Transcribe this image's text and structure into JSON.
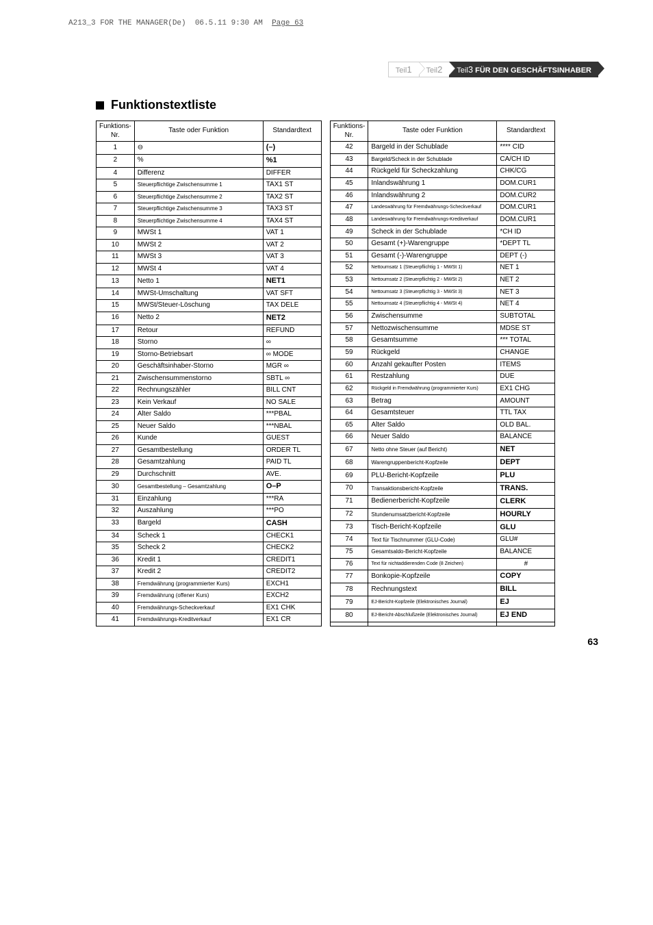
{
  "doc_header": {
    "text": "A213_3 FOR THE MANAGER(De)  06.5.11 9:30 AM  Page 63"
  },
  "tabs": {
    "t1_prefix": "Teil",
    "t1_num": "1",
    "t2_prefix": "Teil",
    "t2_num": "2",
    "t3_prefix": "Teil",
    "t3_num": "3",
    "t3_label": " FÜR DEN GESCHÄFTSINHABER"
  },
  "section_title": "Funktionstextliste",
  "headers": {
    "nr": "Funktions-\nNr.",
    "func": "Taste oder Funktion",
    "std": "Standardtext"
  },
  "rows_left": [
    {
      "nr": "1",
      "func": "⊖",
      "std": "(–)",
      "bold": true
    },
    {
      "nr": "2",
      "func": "%",
      "std": "%1",
      "bold": true
    },
    {
      "nr": "4",
      "func": "Differenz",
      "std": "DIFFER"
    },
    {
      "nr": "5",
      "func": "Steuerpflichtige Zwischensumme 1",
      "std": "TAX1 ST",
      "small": true
    },
    {
      "nr": "6",
      "func": "Steuerpflichtige Zwischensumme 2",
      "std": "TAX2 ST",
      "small": true
    },
    {
      "nr": "7",
      "func": "Steuerpflichtige Zwischensumme 3",
      "std": "TAX3 ST",
      "small": true
    },
    {
      "nr": "8",
      "func": "Steuerpflichtige Zwischensumme 4",
      "std": "TAX4 ST",
      "small": true
    },
    {
      "nr": "9",
      "func": "MWSt 1",
      "std": "VAT 1"
    },
    {
      "nr": "10",
      "func": "MWSt 2",
      "std": "VAT 2"
    },
    {
      "nr": "11",
      "func": "MWSt 3",
      "std": "VAT 3"
    },
    {
      "nr": "12",
      "func": "MWSt 4",
      "std": "VAT 4"
    },
    {
      "nr": "13",
      "func": "Netto 1",
      "std": "NET1",
      "bold": true
    },
    {
      "nr": "14",
      "func": "MWSt-Umschaltung",
      "std": "VAT SFT"
    },
    {
      "nr": "15",
      "func": "MWSt/Steuer-Löschung",
      "std": "TAX DELE"
    },
    {
      "nr": "16",
      "func": "Netto 2",
      "std": "NET2",
      "bold": true
    },
    {
      "nr": "17",
      "func": "Retour",
      "std": "REFUND"
    },
    {
      "nr": "18",
      "func": "Storno",
      "std": "∞"
    },
    {
      "nr": "19",
      "func": "Storno-Betriebsart",
      "std": "∞ MODE"
    },
    {
      "nr": "20",
      "func": "Geschäftsinhaber-Storno",
      "std": "MGR ∞"
    },
    {
      "nr": "21",
      "func": "Zwischensummenstorno",
      "std": "SBTL ∞"
    },
    {
      "nr": "22",
      "func": "Rechnungszähler",
      "std": "BILL CNT"
    },
    {
      "nr": "23",
      "func": "Kein Verkauf",
      "std": "NO SALE"
    },
    {
      "nr": "24",
      "func": "Alter Saldo",
      "std": "***PBAL"
    },
    {
      "nr": "25",
      "func": "Neuer Saldo",
      "std": "***NBAL"
    },
    {
      "nr": "26",
      "func": "Kunde",
      "std": "GUEST"
    },
    {
      "nr": "27",
      "func": "Gesamtbestellung",
      "std": "ORDER TL"
    },
    {
      "nr": "28",
      "func": "Gesamtzahlung",
      "std": "PAID TL"
    },
    {
      "nr": "29",
      "func": "Durchschnitt",
      "std": "AVE."
    },
    {
      "nr": "30",
      "func": "Gesamtbestellung – Gesamtzahlung",
      "std": "O–P",
      "small": true,
      "bold": true
    },
    {
      "nr": "31",
      "func": "Einzahlung",
      "std": "***RA"
    },
    {
      "nr": "32",
      "func": "Auszahlung",
      "std": "***PO"
    },
    {
      "nr": "33",
      "func": "Bargeld",
      "std": "CASH",
      "bold": true
    },
    {
      "nr": "34",
      "func": "Scheck 1",
      "std": "CHECK1"
    },
    {
      "nr": "35",
      "func": "Scheck 2",
      "std": "CHECK2"
    },
    {
      "nr": "36",
      "func": "Kredit 1",
      "std": "CREDIT1"
    },
    {
      "nr": "37",
      "func": "Kredit 2",
      "std": "CREDIT2"
    },
    {
      "nr": "38",
      "func": "Fremdwährung (programmierter Kurs)",
      "std": "EXCH1",
      "small": true
    },
    {
      "nr": "39",
      "func": "Fremdwährung (offener Kurs)",
      "std": "EXCH2",
      "small": true
    },
    {
      "nr": "40",
      "func": "Fremdwährungs-Scheckverkauf",
      "std": "EX1 CHK",
      "small": true
    },
    {
      "nr": "41",
      "func": "Fremdwährungs-Kreditverkauf",
      "std": "EX1 CR",
      "small": true
    }
  ],
  "rows_right": [
    {
      "nr": "42",
      "func": "Bargeld in der Schublade",
      "std": "**** CID"
    },
    {
      "nr": "43",
      "func": "Bargeld/Scheck in der Schublade",
      "std": "CA/CH ID",
      "small": true
    },
    {
      "nr": "44",
      "func": "Rückgeld für Scheckzahlung",
      "std": "CHK/CG"
    },
    {
      "nr": "45",
      "func": "Inlandswährung 1",
      "std": "DOM.CUR1"
    },
    {
      "nr": "46",
      "func": "Inlandswährung 2",
      "std": "DOM.CUR2"
    },
    {
      "nr": "47",
      "func": "Landeswährung für Fremdwährungs-Scheckverkauf",
      "std": "DOM.CUR1",
      "xsmall": true
    },
    {
      "nr": "48",
      "func": "Landeswährung für Fremdwährungs-Kreditverkauf",
      "std": "DOM.CUR1",
      "xsmall": true
    },
    {
      "nr": "49",
      "func": "Scheck in der Schublade",
      "std": "*CH ID"
    },
    {
      "nr": "50",
      "func": "Gesamt (+)-Warengruppe",
      "std": "*DEPT TL"
    },
    {
      "nr": "51",
      "func": "Gesamt (-)-Warengruppe",
      "std": "DEPT (-)"
    },
    {
      "nr": "52",
      "func": "Nettoumsatz 1 (Steuerpflichtig 1 - MWSt 1)",
      "std": "NET 1",
      "xsmall": true
    },
    {
      "nr": "53",
      "func": "Nettoumsatz 2 (Steuerpflichtig 2 - MWSt 2)",
      "std": "NET 2",
      "xsmall": true
    },
    {
      "nr": "54",
      "func": "Nettoumsatz 3 (Steuerpflichtig 3 - MWSt 3)",
      "std": "NET 3",
      "xsmall": true
    },
    {
      "nr": "55",
      "func": "Nettoumsatz 4 (Steuerpflichtig 4 - MWSt 4)",
      "std": "NET 4",
      "xsmall": true
    },
    {
      "nr": "56",
      "func": "Zwischensumme",
      "std": "SUBTOTAL"
    },
    {
      "nr": "57",
      "func": "Nettozwischensumme",
      "std": "MDSE ST"
    },
    {
      "nr": "58",
      "func": "Gesamtsumme",
      "std": "*** TOTAL"
    },
    {
      "nr": "59",
      "func": "Rückgeld",
      "std": "CHANGE"
    },
    {
      "nr": "60",
      "func": "Anzahl gekaufter Posten",
      "std": "ITEMS"
    },
    {
      "nr": "61",
      "func": "Restzahlung",
      "std": "DUE"
    },
    {
      "nr": "62",
      "func": "Rückgeld in Fremdwährung (programmierter Kurs)",
      "std": "EX1 CHG",
      "xsmall": true
    },
    {
      "nr": "63",
      "func": "Betrag",
      "std": "AMOUNT"
    },
    {
      "nr": "64",
      "func": "Gesamtsteuer",
      "std": "TTL TAX"
    },
    {
      "nr": "65",
      "func": "Alter Saldo",
      "std": "OLD BAL."
    },
    {
      "nr": "66",
      "func": "Neuer Saldo",
      "std": "BALANCE"
    },
    {
      "nr": "67",
      "func": "Netto ohne Steuer (auf Bericht)",
      "std": "NET",
      "small": true,
      "bold": true
    },
    {
      "nr": "68",
      "func": "Warengruppenbericht-Kopfzeile",
      "std": "DEPT",
      "small": true,
      "bold": true
    },
    {
      "nr": "69",
      "func": "PLU-Bericht-Kopfzeile",
      "std": "PLU",
      "bold": true
    },
    {
      "nr": "70",
      "func": "Transaktionsbericht-Kopfzeile",
      "std": "TRANS.",
      "small": true,
      "bold": true
    },
    {
      "nr": "71",
      "func": "Bedienerbericht-Kopfzeile",
      "std": "CLERK",
      "bold": true
    },
    {
      "nr": "72",
      "func": "Stundenumsatzbericht-Kopfzeile",
      "std": "HOURLY",
      "small": true,
      "bold": true
    },
    {
      "nr": "73",
      "func": "Tisch-Bericht-Kopfzeile",
      "std": "GLU",
      "bold": true
    },
    {
      "nr": "74",
      "func": "Text für Tischnummer (GLU-Code)",
      "std": "GLU#",
      "small": true
    },
    {
      "nr": "75",
      "func": "Gesamtsaldo-Bericht-Kopfzeile",
      "std": "BALANCE",
      "small": true
    },
    {
      "nr": "76",
      "func": "Text für nichtaddierenden Code (8 Zeichen)",
      "std": "#",
      "xsmall": true,
      "std_center": true
    },
    {
      "nr": "77",
      "func": "Bonkopie-Kopfzeile",
      "std": "COPY",
      "bold": true
    },
    {
      "nr": "78",
      "func": "Rechnungstext",
      "std": "BILL",
      "bold": true
    },
    {
      "nr": "79",
      "func": "EJ-Bericht-Kopfzeile (Elektronisches Journal)",
      "std": "EJ",
      "xsmall": true,
      "bold": true
    },
    {
      "nr": "80",
      "func": "EJ-Bericht-Abschlußzeile (Elektronisches Journal)",
      "std": "EJ END",
      "xsmall": true,
      "bold": true
    },
    {
      "nr": "",
      "func": "",
      "std": ""
    }
  ],
  "page_num": "63"
}
